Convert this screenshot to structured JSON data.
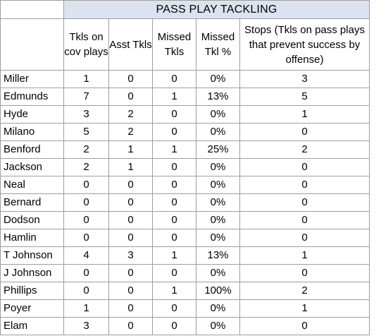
{
  "table": {
    "title": "PASS PLAY TACKLING",
    "headers": [
      "Tkls on cov plays",
      "Asst Tkls",
      "Missed Tkls",
      "Missed Tkl %",
      "Stops (Tkls on pass plays that prevent success by offense)"
    ],
    "rows": [
      {
        "name": "Miller",
        "values": [
          "1",
          "0",
          "0",
          "0%",
          "3"
        ]
      },
      {
        "name": "Edmunds",
        "values": [
          "7",
          "0",
          "1",
          "13%",
          "5"
        ]
      },
      {
        "name": "Hyde",
        "values": [
          "3",
          "2",
          "0",
          "0%",
          "1"
        ]
      },
      {
        "name": "Milano",
        "values": [
          "5",
          "2",
          "0",
          "0%",
          "0"
        ]
      },
      {
        "name": "Benford",
        "values": [
          "2",
          "1",
          "1",
          "25%",
          "2"
        ]
      },
      {
        "name": "Jackson",
        "values": [
          "2",
          "1",
          "0",
          "0%",
          "0"
        ]
      },
      {
        "name": "Neal",
        "values": [
          "0",
          "0",
          "0",
          "0%",
          "0"
        ]
      },
      {
        "name": "Bernard",
        "values": [
          "0",
          "0",
          "0",
          "0%",
          "0"
        ]
      },
      {
        "name": "Dodson",
        "values": [
          "0",
          "0",
          "0",
          "0%",
          "0"
        ]
      },
      {
        "name": "Hamlin",
        "values": [
          "0",
          "0",
          "0",
          "0%",
          "0"
        ]
      },
      {
        "name": "T Johnson",
        "values": [
          "4",
          "3",
          "1",
          "13%",
          "1"
        ]
      },
      {
        "name": "J Johnson",
        "values": [
          "0",
          "0",
          "0",
          "0%",
          "0"
        ]
      },
      {
        "name": "Phillips",
        "values": [
          "0",
          "0",
          "1",
          "100%",
          "2"
        ]
      },
      {
        "name": "Poyer",
        "values": [
          "1",
          "0",
          "0",
          "0%",
          "1"
        ]
      },
      {
        "name": "Elam",
        "values": [
          "3",
          "0",
          "0",
          "0%",
          "0"
        ]
      }
    ]
  }
}
